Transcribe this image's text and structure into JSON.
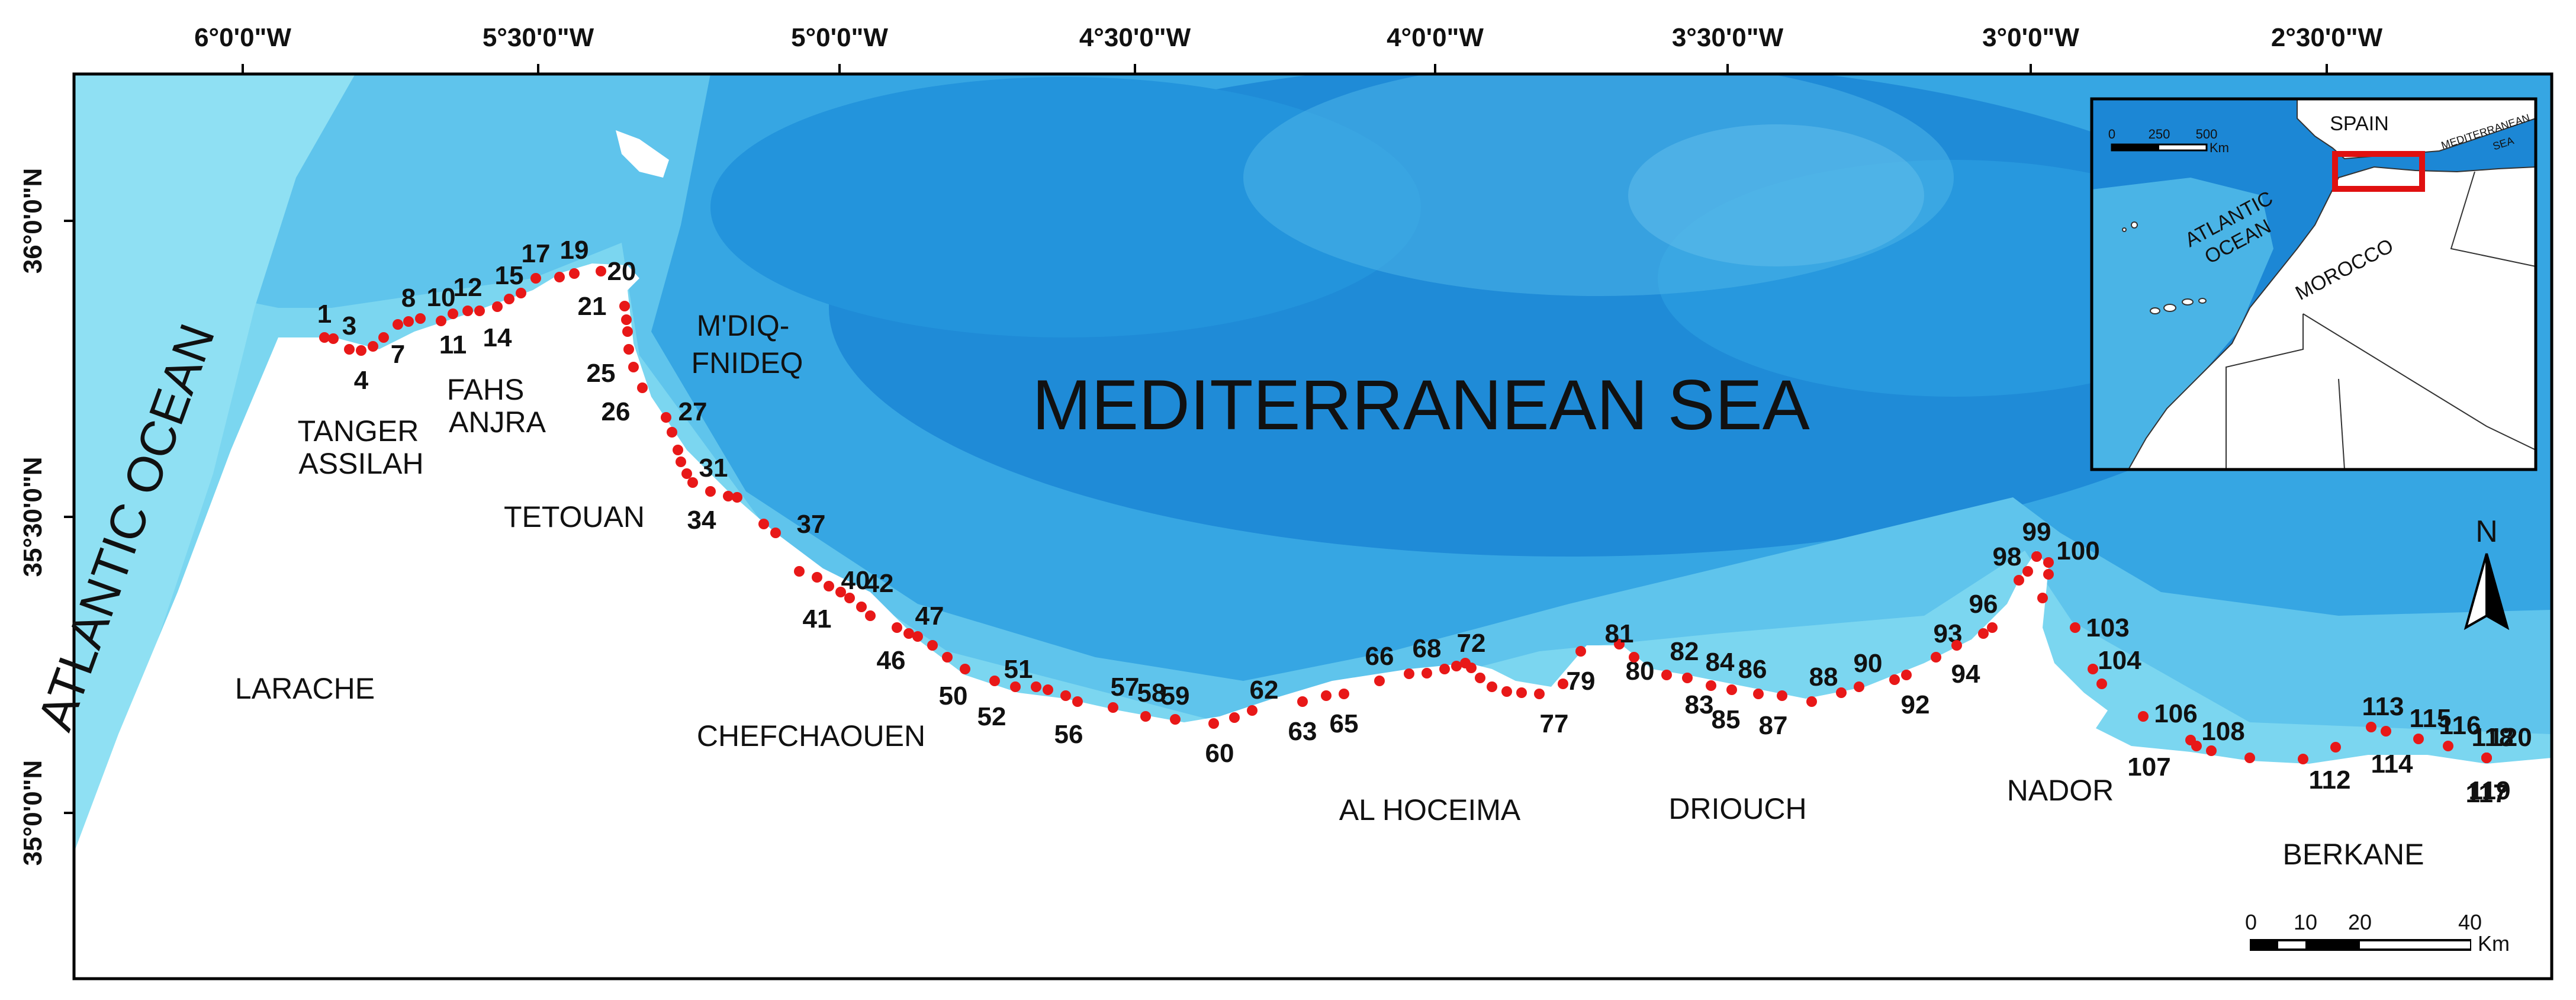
{
  "lon_labels": [
    "6°0'0\"W",
    "5°30'0\"W",
    "5°0'0\"W",
    "4°30'0\"W",
    "4°0'0\"W",
    "3°30'0\"W",
    "3°0'0\"W",
    "2°30'0\"W"
  ],
  "lat_labels": [
    "36°0'0\"N",
    "35°30'0\"N",
    "35°0'0\"N"
  ],
  "sea_label": "MEDITERRANEAN SEA",
  "ocean_label": "ATLANTIC OCEAN",
  "provinces": [
    "TANGER ASSILAH",
    "FAHS ANJRA",
    "M'DIQ-FNIDEQ",
    "TETOUAN",
    "LARACHE",
    "CHEFCHAOUEN",
    "AL HOCEIMA",
    "DRIOUCH",
    "NADOR",
    "BERKANE"
  ],
  "province_lines": {
    "tanger": [
      "TANGER",
      "ASSILAH"
    ],
    "fahs": [
      "FAHS",
      "ANJRA"
    ],
    "mdiq": [
      "M'DIQ-",
      "FNIDEQ"
    ]
  },
  "site_count": 120,
  "north_label": "N",
  "scale_bar": {
    "ticks": [
      "0",
      "10",
      "20",
      "40"
    ],
    "unit": "Km"
  },
  "inset": {
    "spain": "SPAIN",
    "morocco": "MOROCCO",
    "ocean_line1": "ATLANTIC",
    "ocean_line2": "OCEAN",
    "med_line1": "MEDITERRANEAN",
    "med_line2": "SEA",
    "scale_ticks": [
      "0",
      "250",
      "500"
    ],
    "scale_unit": "Km"
  },
  "colors": {
    "site_dot": "#e81818",
    "sea_shallow": "#6fd0ec",
    "sea_deep": "#1f8fd8",
    "land": "#ffffff",
    "study_box": "#e01010"
  }
}
